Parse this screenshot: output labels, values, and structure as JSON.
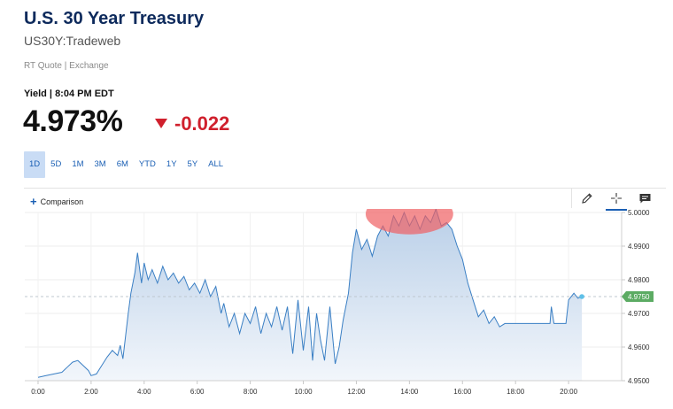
{
  "header": {
    "title": "U.S. 30 Year Treasury",
    "symbol": "US30Y:Tradeweb",
    "quote_meta": "RT Quote | Exchange",
    "yield_label": "Yield | 8:04 PM EDT",
    "price": "4.973%",
    "change": "-0.022"
  },
  "ranges": [
    "1D",
    "5D",
    "1M",
    "3M",
    "6M",
    "YTD",
    "1Y",
    "5Y",
    "ALL"
  ],
  "active_range": "1D",
  "toolbar": {
    "comparison_label": "Comparison",
    "tools": [
      "pencil-icon",
      "crosshair-icon",
      "comment-icon"
    ]
  },
  "colors": {
    "title": "#0d2a5c",
    "down": "#d0202d",
    "line": "#3a7fc4",
    "fill_top": "#b9cfe8",
    "fill_bottom": "#f2f6fb",
    "last_badge": "#5cab63",
    "highlight": "#ef5f62"
  },
  "chart_data": {
    "type": "area",
    "x_ticks": [
      "0:00",
      "2:00",
      "4:00",
      "6:00",
      "8:00",
      "10:00",
      "12:00",
      "14:00",
      "16:00",
      "18:00",
      "20:00"
    ],
    "y_ticks": [
      "4.9500",
      "4.9600",
      "4.9700",
      "4.9800",
      "4.9900",
      "5.0000"
    ],
    "ylim": [
      4.95,
      5.0
    ],
    "xlim": [
      -0.5,
      22.0
    ],
    "last_value": "4.9750",
    "annotation": "highlighted region around session high (~13:00–15:30)",
    "series": [
      {
        "points": [
          [
            0.0,
            4.951
          ],
          [
            0.3,
            4.9515
          ],
          [
            0.6,
            4.952
          ],
          [
            0.9,
            4.9525
          ],
          [
            1.1,
            4.954
          ],
          [
            1.3,
            4.9555
          ],
          [
            1.5,
            4.956
          ],
          [
            1.7,
            4.9545
          ],
          [
            1.9,
            4.953
          ],
          [
            2.0,
            4.9515
          ],
          [
            2.2,
            4.952
          ],
          [
            2.4,
            4.9545
          ],
          [
            2.6,
            4.957
          ],
          [
            2.8,
            4.959
          ],
          [
            3.0,
            4.9575
          ],
          [
            3.1,
            4.9605
          ],
          [
            3.2,
            4.9565
          ],
          [
            3.4,
            4.97
          ],
          [
            3.5,
            4.976
          ],
          [
            3.65,
            4.982
          ],
          [
            3.75,
            4.988
          ],
          [
            3.9,
            4.979
          ],
          [
            4.0,
            4.985
          ],
          [
            4.15,
            4.98
          ],
          [
            4.3,
            4.983
          ],
          [
            4.5,
            4.979
          ],
          [
            4.7,
            4.984
          ],
          [
            4.9,
            4.98
          ],
          [
            5.1,
            4.982
          ],
          [
            5.3,
            4.979
          ],
          [
            5.5,
            4.981
          ],
          [
            5.7,
            4.977
          ],
          [
            5.9,
            4.979
          ],
          [
            6.1,
            4.976
          ],
          [
            6.3,
            4.98
          ],
          [
            6.5,
            4.975
          ],
          [
            6.7,
            4.978
          ],
          [
            6.9,
            4.97
          ],
          [
            7.0,
            4.973
          ],
          [
            7.2,
            4.966
          ],
          [
            7.4,
            4.97
          ],
          [
            7.6,
            4.964
          ],
          [
            7.8,
            4.97
          ],
          [
            8.0,
            4.967
          ],
          [
            8.2,
            4.972
          ],
          [
            8.4,
            4.964
          ],
          [
            8.6,
            4.97
          ],
          [
            8.8,
            4.966
          ],
          [
            9.0,
            4.972
          ],
          [
            9.2,
            4.965
          ],
          [
            9.4,
            4.972
          ],
          [
            9.6,
            4.958
          ],
          [
            9.8,
            4.974
          ],
          [
            10.0,
            4.959
          ],
          [
            10.2,
            4.972
          ],
          [
            10.35,
            4.956
          ],
          [
            10.5,
            4.97
          ],
          [
            10.65,
            4.962
          ],
          [
            10.8,
            4.956
          ],
          [
            11.0,
            4.972
          ],
          [
            11.2,
            4.955
          ],
          [
            11.35,
            4.96
          ],
          [
            11.5,
            4.968
          ],
          [
            11.7,
            4.976
          ],
          [
            11.85,
            4.988
          ],
          [
            12.0,
            4.995
          ],
          [
            12.2,
            4.989
          ],
          [
            12.4,
            4.992
          ],
          [
            12.6,
            4.987
          ],
          [
            12.8,
            4.993
          ],
          [
            13.0,
            4.996
          ],
          [
            13.2,
            4.993
          ],
          [
            13.4,
            4.999
          ],
          [
            13.6,
            4.996
          ],
          [
            13.8,
            5.0
          ],
          [
            14.0,
            4.996
          ],
          [
            14.2,
            4.999
          ],
          [
            14.4,
            4.995
          ],
          [
            14.6,
            4.999
          ],
          [
            14.8,
            4.997
          ],
          [
            15.0,
            5.001
          ],
          [
            15.2,
            4.996
          ],
          [
            15.4,
            4.997
          ],
          [
            15.6,
            4.995
          ],
          [
            15.8,
            4.99
          ],
          [
            16.0,
            4.986
          ],
          [
            16.2,
            4.979
          ],
          [
            16.4,
            4.974
          ],
          [
            16.6,
            4.969
          ],
          [
            16.8,
            4.971
          ],
          [
            17.0,
            4.967
          ],
          [
            17.2,
            4.969
          ],
          [
            17.4,
            4.966
          ],
          [
            17.6,
            4.967
          ],
          [
            18.0,
            4.967
          ],
          [
            18.5,
            4.967
          ],
          [
            19.0,
            4.967
          ],
          [
            19.3,
            4.967
          ],
          [
            19.35,
            4.972
          ],
          [
            19.45,
            4.967
          ],
          [
            19.9,
            4.967
          ],
          [
            20.0,
            4.974
          ],
          [
            20.2,
            4.976
          ],
          [
            20.35,
            4.9745
          ],
          [
            20.5,
            4.975
          ]
        ]
      }
    ]
  }
}
